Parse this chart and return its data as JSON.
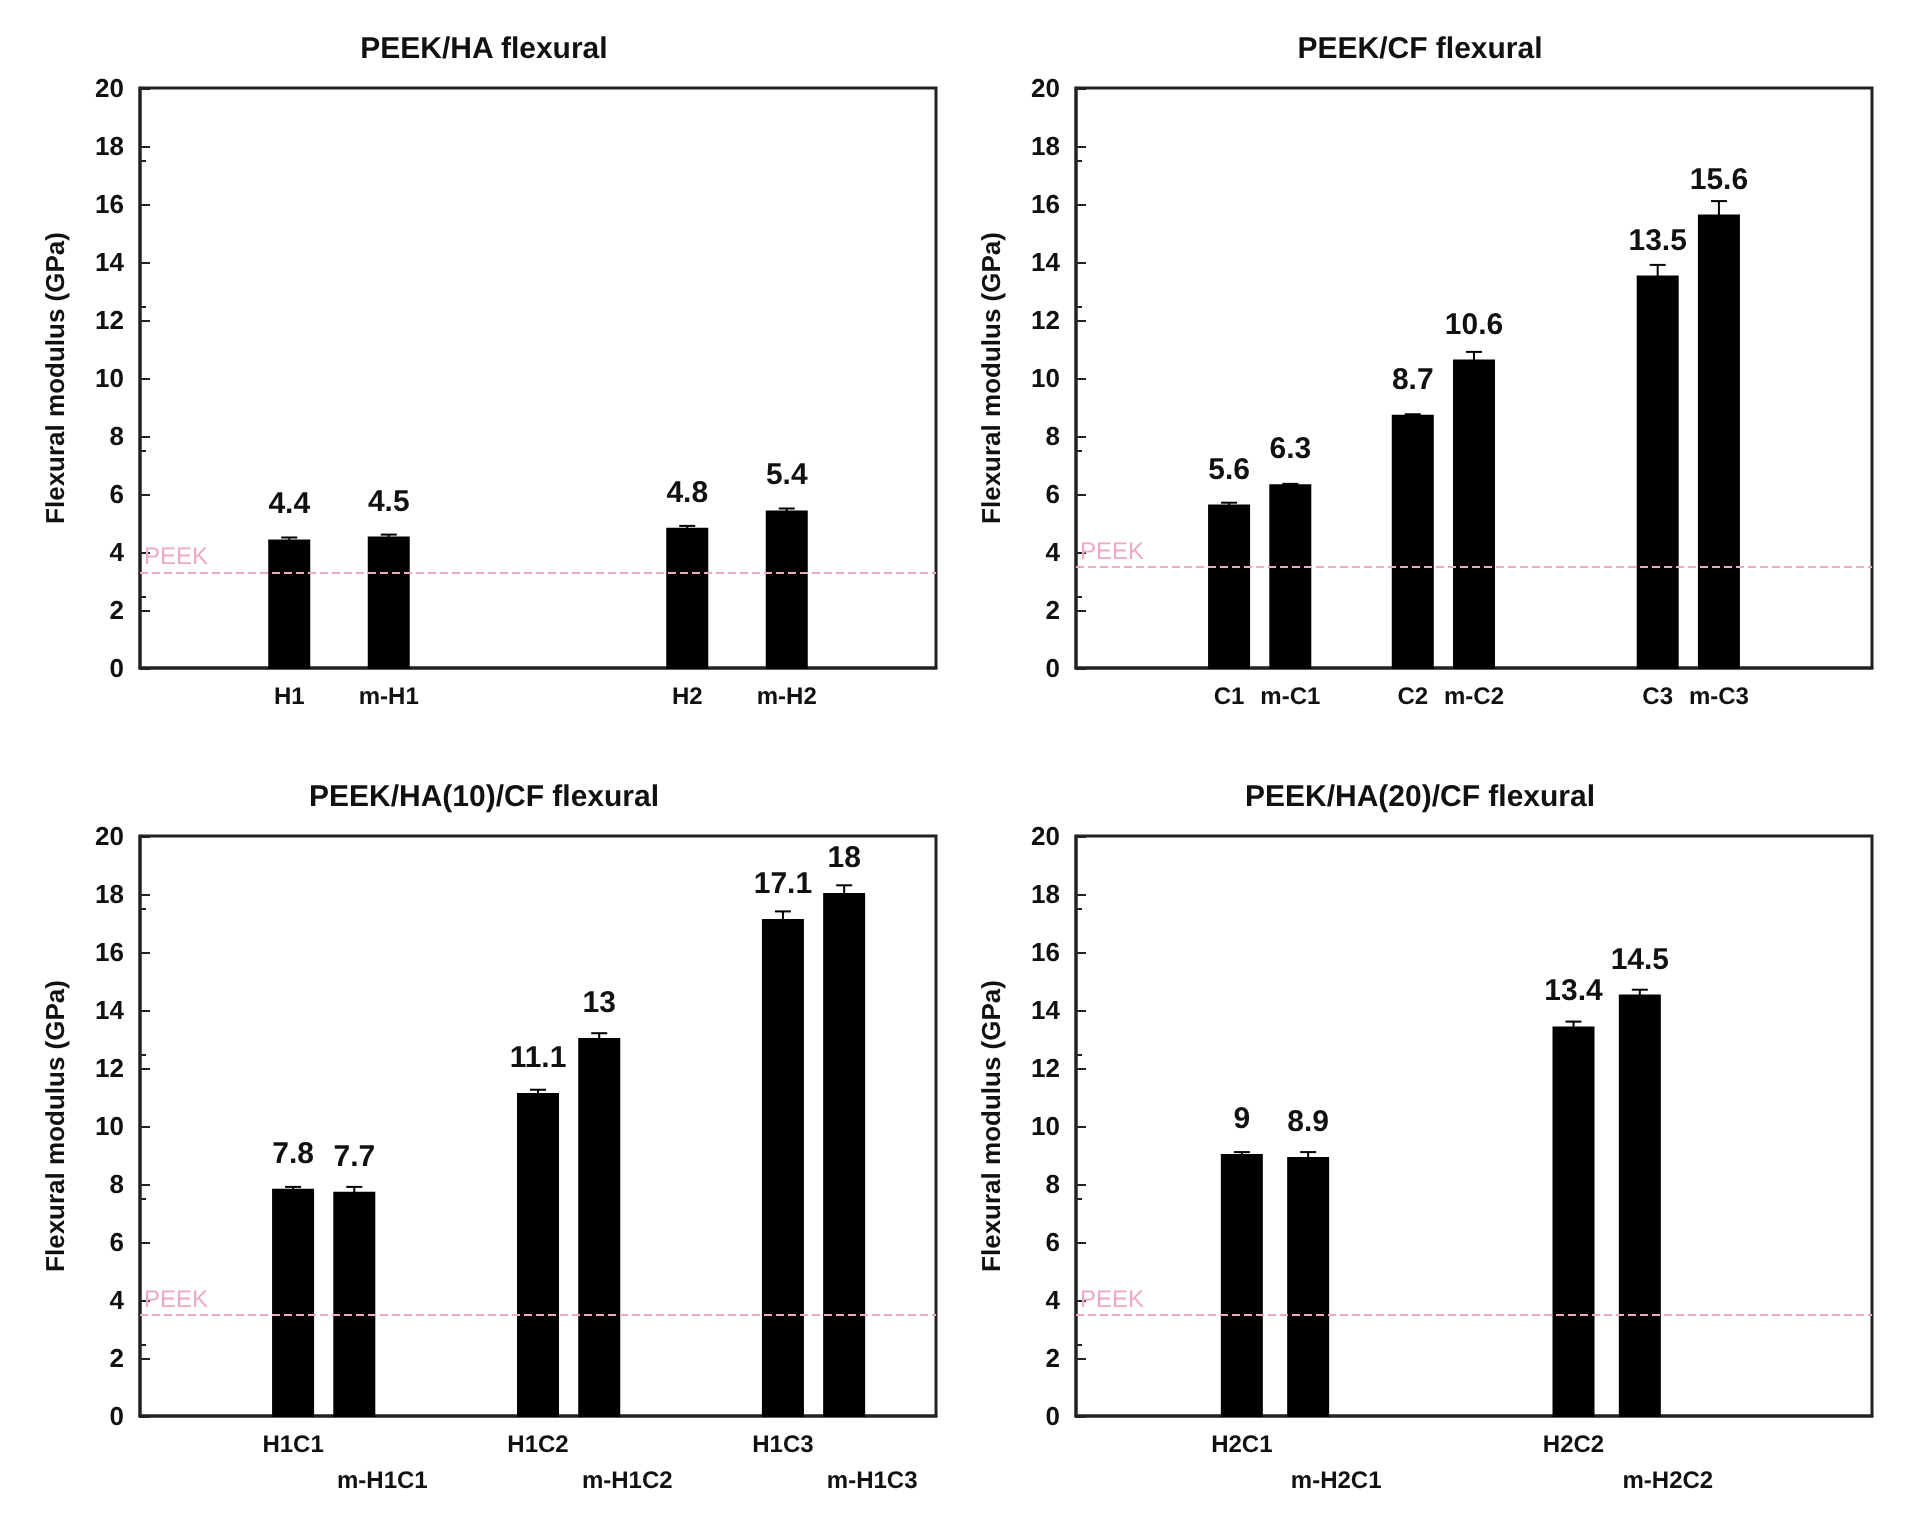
{
  "chart_data": [
    {
      "type": "bar",
      "title": "PEEK/HA flexural",
      "ylabel": "Flexural modulus (GPa)",
      "categories": [
        null,
        "H1",
        "m-H1",
        null,
        null,
        "H2",
        "m-H2",
        null
      ],
      "values": [
        null,
        4.4,
        4.5,
        null,
        null,
        4.8,
        5.4,
        null
      ],
      "errors": [
        null,
        0.1,
        0.1,
        null,
        null,
        0.1,
        0.1,
        null
      ],
      "color": "#000000",
      "data_labels": true,
      "ylim": [
        0,
        20
      ],
      "yticks": [
        0,
        2,
        4,
        6,
        8,
        10,
        12,
        14,
        16,
        18,
        20
      ],
      "ref_lines": [
        {
          "axis": "y",
          "value": 3.3,
          "label": "PEEK",
          "color": "#f0a8c8",
          "line_style": "dashed"
        }
      ]
    },
    {
      "type": "bar",
      "title": "PEEK/CF flexural",
      "ylabel": "Flexural modulus (GPa)",
      "categories": [
        null,
        null,
        "C1",
        "m-C1",
        null,
        "C2",
        "m-C2",
        null,
        null,
        "C3",
        "m-C3",
        null,
        null
      ],
      "values": [
        null,
        null,
        5.6,
        6.3,
        null,
        8.7,
        10.6,
        null,
        null,
        13.5,
        15.6,
        null,
        null
      ],
      "errors": [
        null,
        null,
        0.1,
        0.05,
        null,
        0.05,
        0.3,
        null,
        null,
        0.4,
        0.5,
        null,
        null
      ],
      "color": "#000000",
      "data_labels": true,
      "ylim": [
        0,
        20
      ],
      "yticks": [
        0,
        2,
        4,
        6,
        8,
        10,
        12,
        14,
        16,
        18,
        20
      ],
      "ref_lines": [
        {
          "axis": "y",
          "value": 3.5,
          "label": "PEEK",
          "color": "#f0a8c8",
          "line_style": "dashed"
        }
      ]
    },
    {
      "type": "bar",
      "title": "PEEK/HA(10)/CF flexural",
      "ylabel": "Flexural modulus (GPa)",
      "categories": [
        null,
        null,
        "H1C1",
        "m-H1C1",
        null,
        null,
        "H1C2",
        "m-H1C2",
        null,
        null,
        "H1C3",
        "m-H1C3",
        null
      ],
      "values": [
        null,
        null,
        7.8,
        7.7,
        null,
        null,
        11.1,
        13,
        null,
        null,
        17.1,
        18,
        null
      ],
      "errors": [
        null,
        null,
        0.1,
        0.2,
        null,
        null,
        0.15,
        0.2,
        null,
        null,
        0.3,
        0.3,
        null
      ],
      "color": "#000000",
      "data_labels": true,
      "ylim": [
        0,
        20
      ],
      "yticks": [
        0,
        2,
        4,
        6,
        8,
        10,
        12,
        14,
        16,
        18,
        20
      ],
      "ref_lines": [
        {
          "axis": "y",
          "value": 3.5,
          "label": "PEEK",
          "color": "#f0a8c8",
          "line_style": "dashed"
        }
      ]
    },
    {
      "type": "bar",
      "title": "PEEK/HA(20)/CF flexural",
      "ylabel": "Flexural modulus (GPa)",
      "categories": [
        null,
        null,
        "H2C1",
        "m-H2C1",
        null,
        null,
        null,
        "H2C2",
        "m-H2C2",
        null,
        null,
        null
      ],
      "values": [
        null,
        null,
        9,
        8.9,
        null,
        null,
        null,
        13.4,
        14.5,
        null,
        null,
        null
      ],
      "errors": [
        null,
        null,
        0.1,
        0.2,
        null,
        null,
        null,
        0.2,
        0.2,
        null,
        null,
        null
      ],
      "color": "#000000",
      "data_labels": true,
      "ylim": [
        0,
        20
      ],
      "yticks": [
        0,
        2,
        4,
        6,
        8,
        10,
        12,
        14,
        16,
        18,
        20
      ],
      "ref_lines": [
        {
          "axis": "y",
          "value": 3.5,
          "label": "PEEK",
          "color": "#f0a8c8",
          "line_style": "dashed"
        }
      ]
    }
  ]
}
